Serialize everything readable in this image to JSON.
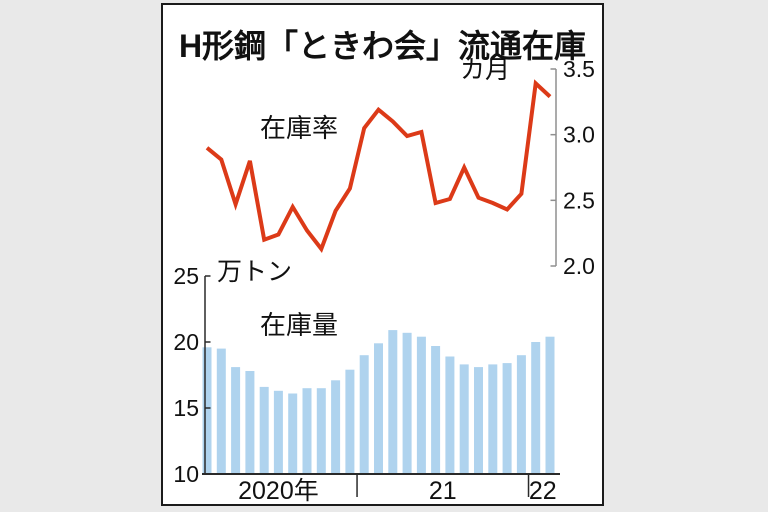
{
  "colors": {
    "line": "#dc3a18",
    "bar": "#afd3ee",
    "axis": "#8f8f8f",
    "axis_dark": "#2a2a2a",
    "text": "#111111",
    "page_bg": "#e9e9e9",
    "panel_bg": "#ffffff",
    "panel_border": "#1b1b1b"
  },
  "line_section": {
    "series_label": "在庫率",
    "unit_label": "カ月"
  },
  "bar_section": {
    "series_label": "在庫量",
    "unit_label": "万トン"
  },
  "chart_data": {
    "type": "combo",
    "title": "H形鋼「ときわ会」流通在庫",
    "months_total": 25,
    "period_inferred": "monthly, Feb 2020 - Feb 2022",
    "x_axis": {
      "year_groups": [
        {
          "label": "2020年",
          "count": 11
        },
        {
          "label": "21",
          "count": 12
        },
        {
          "label": "22",
          "count": 2
        }
      ]
    },
    "series": [
      {
        "name": "在庫率",
        "type": "line",
        "axis": "right",
        "unit": "カ月",
        "color": "#dc3a18",
        "ylim": [
          2.0,
          3.5
        ],
        "ticks": [
          "3.5",
          "3.0",
          "2.5",
          "2.0"
        ],
        "values": [
          2.9,
          2.81,
          2.47,
          2.8,
          2.2,
          2.24,
          2.45,
          2.27,
          2.13,
          2.42,
          2.59,
          3.05,
          3.19,
          3.1,
          2.99,
          3.02,
          2.48,
          2.51,
          2.75,
          2.52,
          2.48,
          2.43,
          2.55,
          3.39,
          3.29
        ]
      },
      {
        "name": "在庫量",
        "type": "bar",
        "axis": "left",
        "unit": "万トン",
        "color": "#afd3ee",
        "ylim": [
          10,
          25
        ],
        "ticks": [
          "25",
          "20",
          "15",
          "10"
        ],
        "values": [
          19.6,
          19.5,
          18.1,
          17.8,
          16.6,
          16.3,
          16.1,
          16.5,
          16.5,
          17.1,
          17.9,
          19.0,
          19.9,
          20.9,
          20.7,
          20.4,
          19.7,
          18.9,
          18.3,
          18.1,
          18.3,
          18.4,
          19.0,
          20.0,
          20.4
        ]
      }
    ]
  }
}
